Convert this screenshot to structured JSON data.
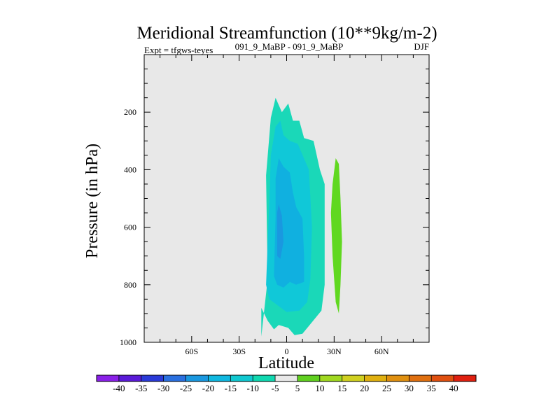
{
  "chart_data": {
    "type": "contour",
    "title": "Meridional Streamfunction (10**9kg/m-2)",
    "subtitle_left": "Expt = tfgws-teyes",
    "subtitle_center": "091_9_MaBP - 091_9_MaBP",
    "subtitle_right": "DJF",
    "xlabel": "Latitude",
    "ylabel": "Pressure (in hPa)",
    "xlim": [
      -90,
      90
    ],
    "ylim": [
      1000,
      0
    ],
    "xticks": [
      {
        "value": -60,
        "label": "60S"
      },
      {
        "value": -30,
        "label": "30S"
      },
      {
        "value": 0,
        "label": "0"
      },
      {
        "value": 30,
        "label": "30N"
      },
      {
        "value": 60,
        "label": "60N"
      }
    ],
    "yticks": [
      {
        "value": 200,
        "label": "200"
      },
      {
        "value": 400,
        "label": "400"
      },
      {
        "value": 600,
        "label": "600"
      },
      {
        "value": 800,
        "label": "800"
      },
      {
        "value": 1000,
        "label": "1000"
      }
    ],
    "levels": [
      -40,
      -35,
      -30,
      -25,
      -20,
      -15,
      -10,
      -5,
      5,
      10,
      15,
      20,
      25,
      30,
      35,
      40
    ],
    "colorbar_colors": [
      "#8a20e8",
      "#5a1ad8",
      "#2a3ad8",
      "#2a70e0",
      "#1a98e0",
      "#10b8e0",
      "#10c8d0",
      "#10d8b0",
      "#e8e8e8",
      "#60d020",
      "#a0d820",
      "#d0d020",
      "#e0b010",
      "#e09010",
      "#e07010",
      "#e05010",
      "#e02010"
    ],
    "fields": [
      {
        "fill": "#1ad8b8",
        "points": [
          [
            -16,
            980
          ],
          [
            -12,
            780
          ],
          [
            -13,
            420
          ],
          [
            -10,
            220
          ],
          [
            -7,
            150
          ],
          [
            -3,
            200
          ],
          [
            1,
            170
          ],
          [
            4,
            230
          ],
          [
            8,
            230
          ],
          [
            11,
            290
          ],
          [
            17,
            300
          ],
          [
            21,
            400
          ],
          [
            24,
            450
          ],
          [
            24,
            650
          ],
          [
            24,
            800
          ],
          [
            22,
            890
          ],
          [
            16,
            930
          ],
          [
            10,
            970
          ],
          [
            5,
            975
          ],
          [
            1,
            950
          ],
          [
            -5,
            940
          ],
          [
            -8,
            955
          ],
          [
            -12,
            925
          ],
          [
            -16,
            880
          ]
        ]
      },
      {
        "fill": "#10c8d8",
        "points": [
          [
            -13,
            800
          ],
          [
            -11,
            520
          ],
          [
            -10,
            350
          ],
          [
            -7,
            250
          ],
          [
            -4,
            230
          ],
          [
            -2,
            280
          ],
          [
            2,
            300
          ],
          [
            7,
            310
          ],
          [
            14,
            400
          ],
          [
            16,
            600
          ],
          [
            15,
            780
          ],
          [
            13,
            860
          ],
          [
            8,
            890
          ],
          [
            0,
            895
          ],
          [
            -6,
            870
          ],
          [
            -11,
            850
          ]
        ]
      },
      {
        "fill": "#10b0e0",
        "points": [
          [
            -8,
            770
          ],
          [
            -7,
            560
          ],
          [
            -7,
            430
          ],
          [
            -5,
            360
          ],
          [
            -2,
            390
          ],
          [
            2,
            410
          ],
          [
            4,
            480
          ],
          [
            6,
            530
          ],
          [
            10,
            570
          ],
          [
            11,
            700
          ],
          [
            11,
            790
          ],
          [
            6,
            800
          ],
          [
            2,
            790
          ],
          [
            -2,
            810
          ],
          [
            -6,
            800
          ]
        ]
      },
      {
        "fill": "#1a98e0",
        "points": [
          [
            -6,
            700
          ],
          [
            -6,
            550
          ],
          [
            -5,
            520
          ],
          [
            -3,
            560
          ],
          [
            -2,
            650
          ],
          [
            -4,
            710
          ]
        ]
      },
      {
        "fill": "#60d820",
        "points": [
          [
            31,
            860
          ],
          [
            29,
            700
          ],
          [
            28,
            550
          ],
          [
            29,
            450
          ],
          [
            31,
            360
          ],
          [
            33,
            380
          ],
          [
            34,
            500
          ],
          [
            35,
            650
          ],
          [
            34,
            800
          ],
          [
            33,
            900
          ]
        ]
      }
    ]
  }
}
